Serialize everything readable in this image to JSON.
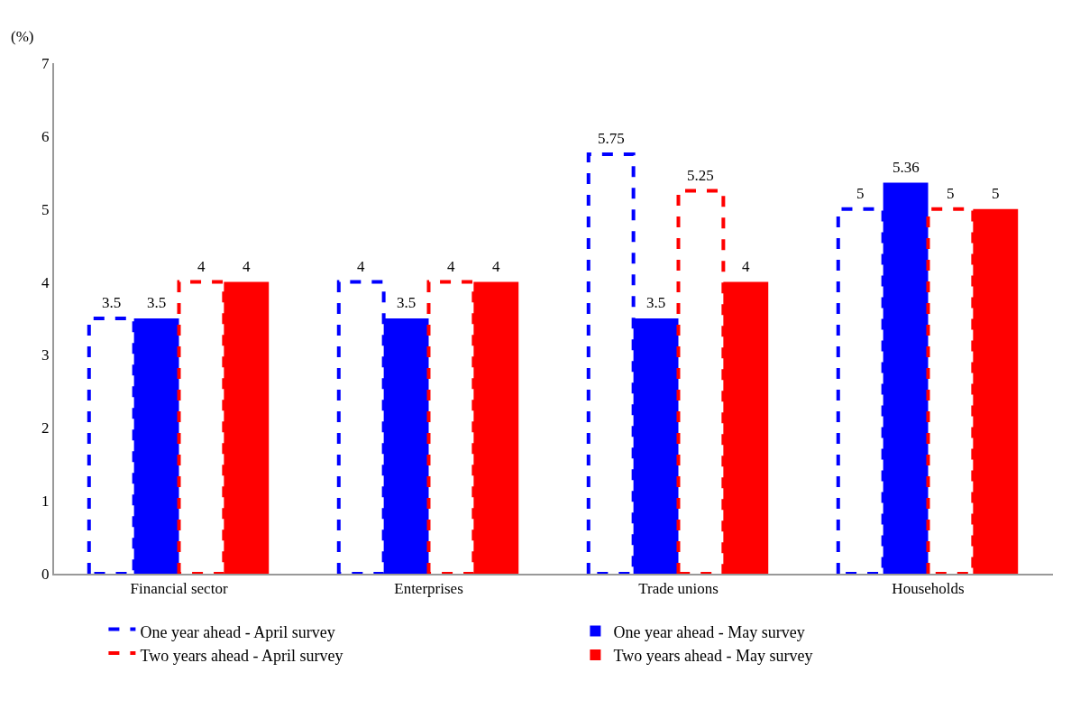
{
  "chart_data": {
    "type": "bar",
    "ylabel": "(%)",
    "categories": [
      "Financial sector",
      "Enterprises",
      "Trade unions",
      "Households"
    ],
    "series": [
      {
        "name": "One year ahead - April survey",
        "color": "#0000ff",
        "line_style": "dashed",
        "values": [
          3.5,
          4,
          5.75,
          5
        ]
      },
      {
        "name": "One year ahead - May survey",
        "color": "#0000ff",
        "values": [
          3.5,
          3.5,
          3.5,
          5.36
        ]
      },
      {
        "name": "Two years ahead - April survey",
        "color": "#ff0000",
        "line_style": "dashed",
        "values": [
          4,
          4,
          5.25,
          5
        ]
      },
      {
        "name": "Two years ahead - May survey",
        "color": "#ff0000",
        "values": [
          4,
          4,
          4,
          5
        ]
      }
    ],
    "ylim": [
      0,
      7
    ],
    "yticks": [
      0,
      1,
      2,
      3,
      4,
      5,
      6,
      7
    ],
    "legend": "bottom",
    "data_labels": true
  }
}
